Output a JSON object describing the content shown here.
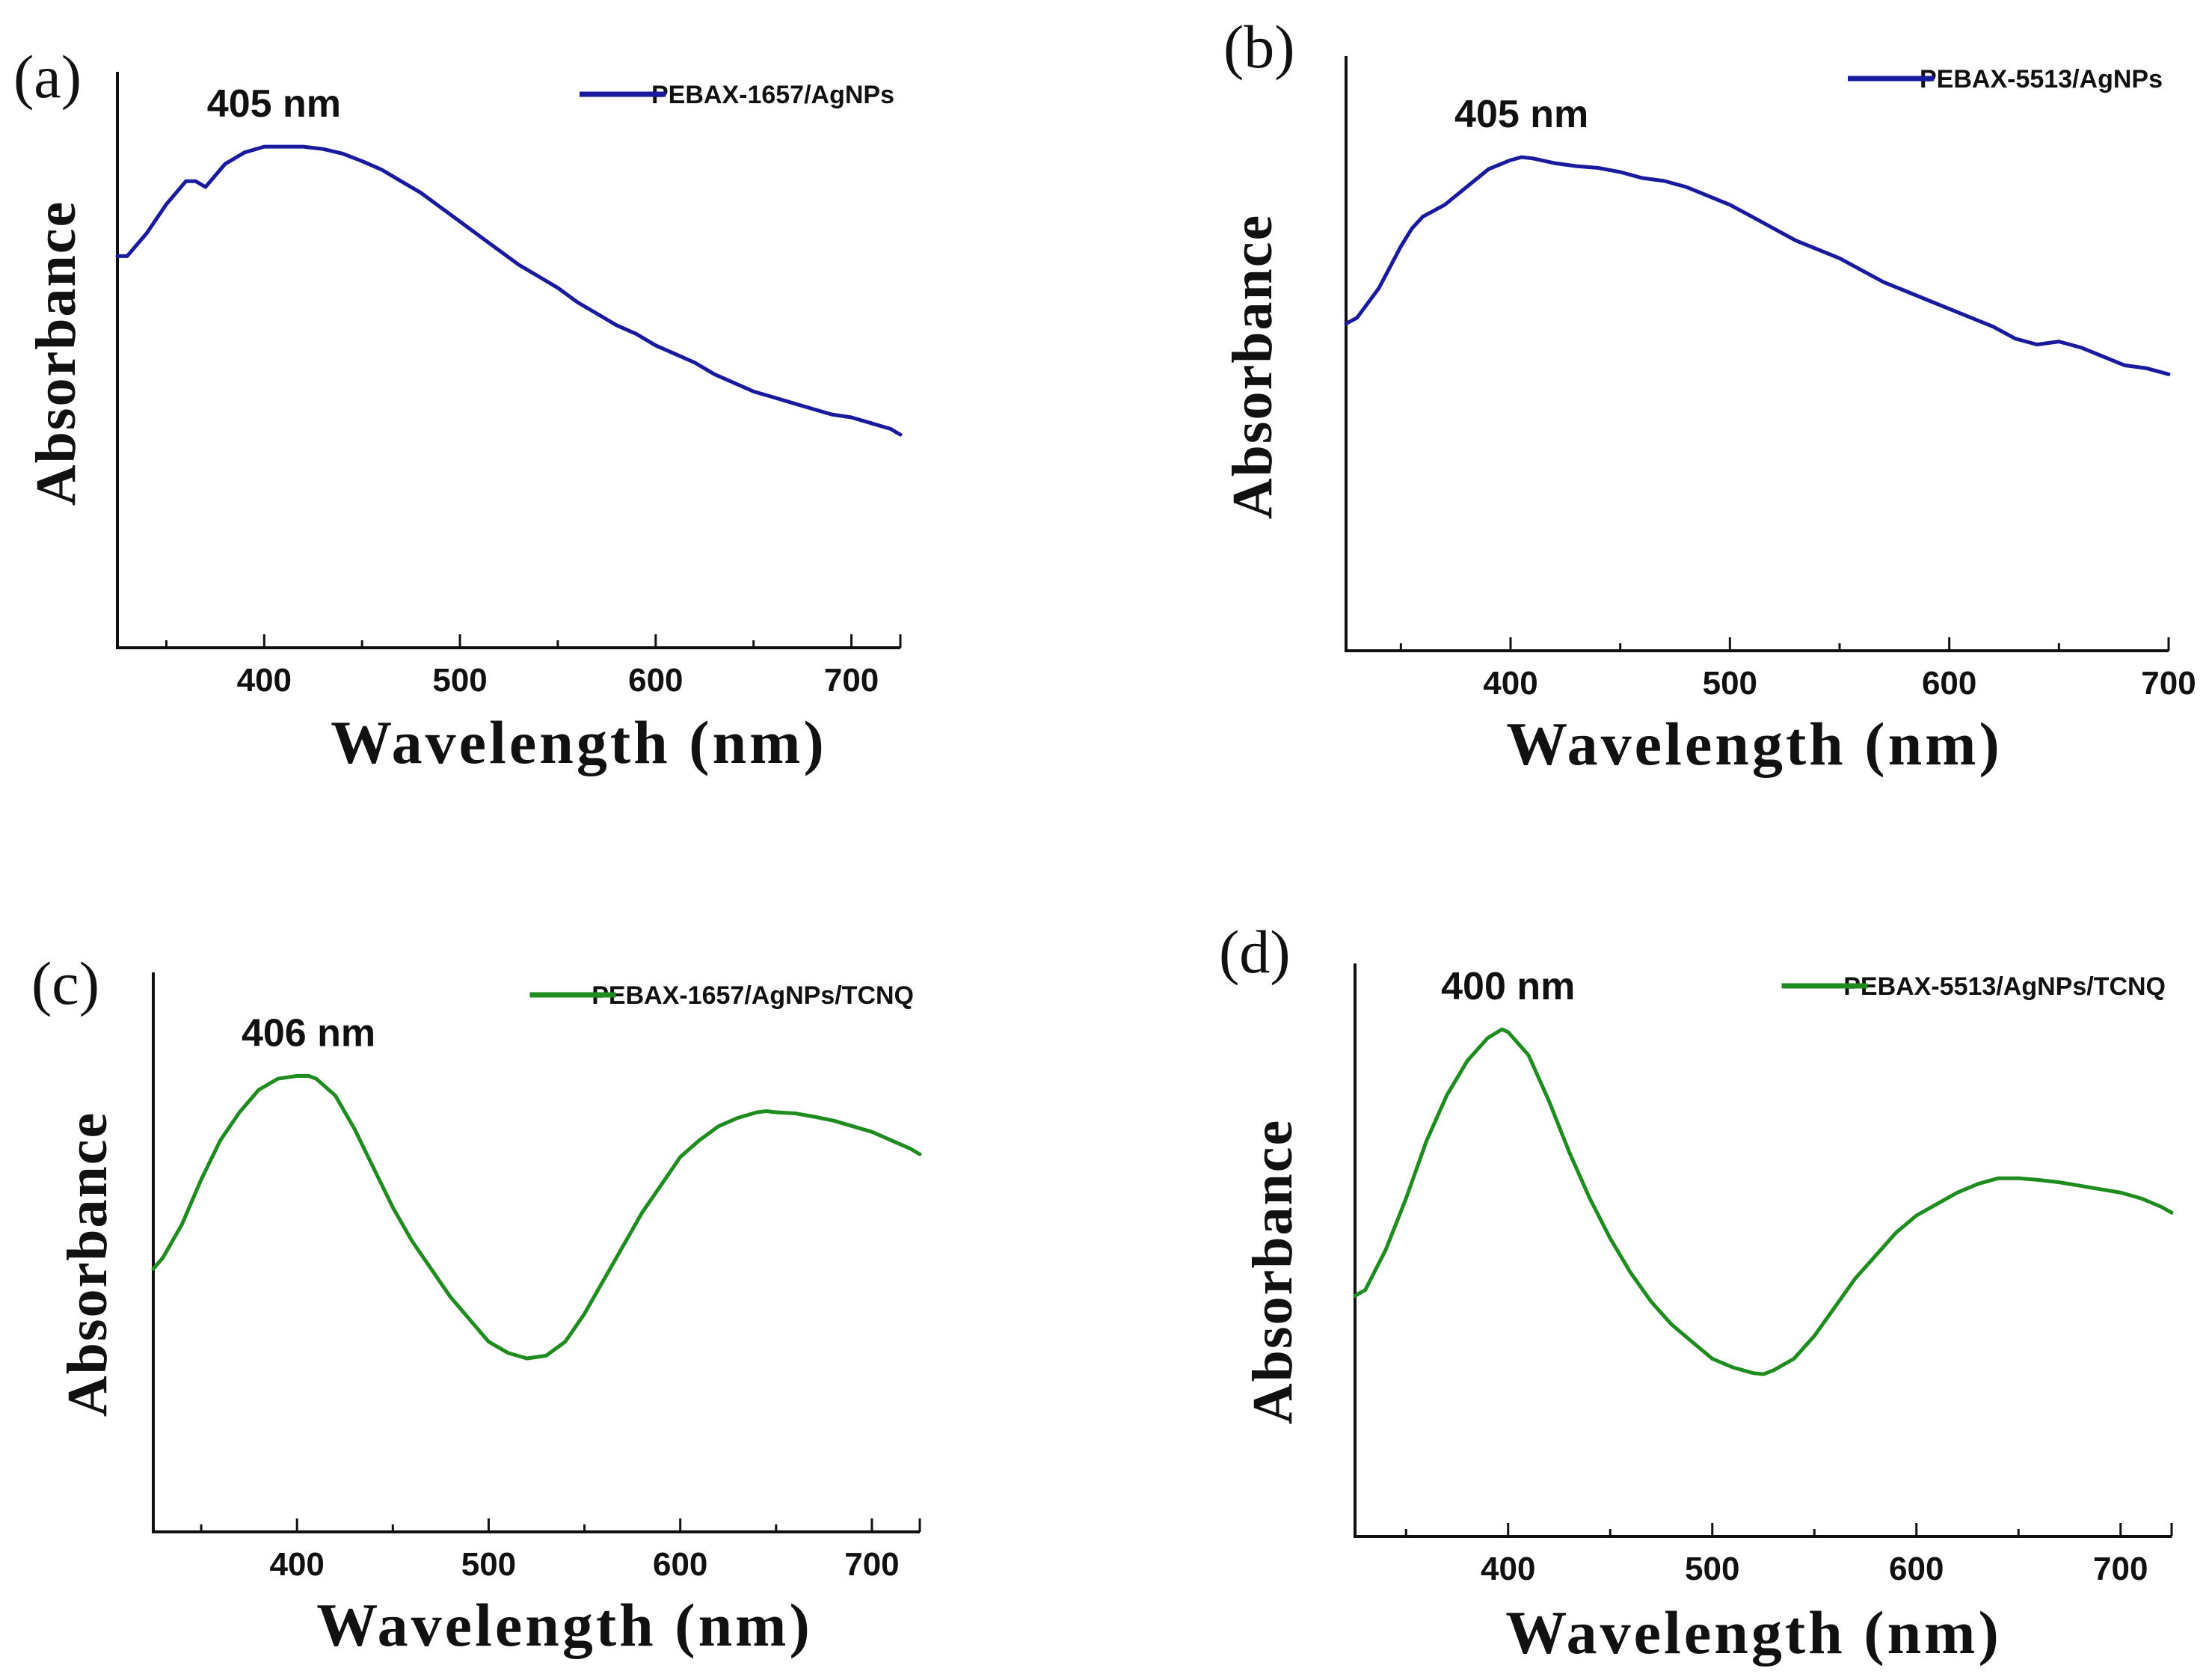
{
  "chart_data": [
    {
      "type": "line",
      "panel_label": "(a)",
      "xlabel": "Wavelength (nm)",
      "ylabel": "Absorbance",
      "xlim": [
        325,
        725
      ],
      "ylim": [
        0,
        1
      ],
      "xticks": [
        400,
        500,
        600,
        700
      ],
      "yticks": [],
      "legend_position": "top-right",
      "annotation": {
        "text": "405 nm",
        "x": 405
      },
      "series": [
        {
          "name": "PEBAX-1657/AgNPs",
          "color": "#1a1a9e",
          "x": [
            325,
            330,
            340,
            350,
            355,
            360,
            365,
            370,
            375,
            380,
            390,
            400,
            405,
            410,
            420,
            430,
            440,
            450,
            460,
            470,
            480,
            490,
            500,
            510,
            520,
            530,
            540,
            550,
            560,
            570,
            580,
            590,
            600,
            610,
            620,
            630,
            640,
            650,
            660,
            670,
            680,
            690,
            700,
            710,
            720,
            725
          ],
          "y": [
            0.68,
            0.68,
            0.72,
            0.77,
            0.79,
            0.81,
            0.81,
            0.8,
            0.82,
            0.84,
            0.86,
            0.87,
            0.87,
            0.87,
            0.87,
            0.866,
            0.858,
            0.845,
            0.83,
            0.81,
            0.79,
            0.765,
            0.74,
            0.715,
            0.69,
            0.665,
            0.645,
            0.625,
            0.6,
            0.58,
            0.56,
            0.545,
            0.525,
            0.51,
            0.495,
            0.475,
            0.46,
            0.445,
            0.435,
            0.425,
            0.415,
            0.405,
            0.4,
            0.39,
            0.38,
            0.37
          ]
        }
      ]
    },
    {
      "type": "line",
      "panel_label": "(b)",
      "xlabel": "Wavelength (nm)",
      "ylabel": "Absorbance",
      "xlim": [
        325,
        700
      ],
      "ylim": [
        0,
        1
      ],
      "xticks": [
        400,
        500,
        600,
        700
      ],
      "yticks": [],
      "legend_position": "top-right",
      "annotation": {
        "text": "405 nm",
        "x": 405
      },
      "series": [
        {
          "name": "PEBAX-5513/AgNPs",
          "color": "#1a1a9e",
          "x": [
            325,
            330,
            340,
            350,
            355,
            360,
            370,
            380,
            390,
            400,
            405,
            410,
            420,
            430,
            440,
            450,
            460,
            470,
            480,
            490,
            500,
            510,
            520,
            530,
            540,
            550,
            560,
            570,
            580,
            590,
            600,
            610,
            620,
            630,
            640,
            650,
            660,
            670,
            680,
            690,
            700
          ],
          "y": [
            0.55,
            0.56,
            0.61,
            0.68,
            0.71,
            0.73,
            0.75,
            0.78,
            0.81,
            0.825,
            0.83,
            0.828,
            0.82,
            0.815,
            0.812,
            0.805,
            0.795,
            0.79,
            0.78,
            0.765,
            0.75,
            0.73,
            0.71,
            0.69,
            0.675,
            0.66,
            0.64,
            0.62,
            0.605,
            0.59,
            0.575,
            0.56,
            0.545,
            0.525,
            0.515,
            0.52,
            0.51,
            0.495,
            0.48,
            0.475,
            0.465
          ]
        }
      ]
    },
    {
      "type": "line",
      "panel_label": "(c)",
      "xlabel": "Wavelength (nm)",
      "ylabel": "Absorbance",
      "xlim": [
        325,
        725
      ],
      "ylim": [
        0,
        1
      ],
      "xticks": [
        400,
        500,
        600,
        700
      ],
      "yticks": [],
      "legend_position": "top-right",
      "annotation": {
        "text": "406 nm",
        "x": 406
      },
      "series": [
        {
          "name": "PEBAX-1657/AgNPs/TCNQ",
          "color": "#1e8c1e",
          "x": [
            325,
            330,
            340,
            350,
            360,
            370,
            380,
            390,
            400,
            406,
            410,
            420,
            430,
            440,
            450,
            460,
            470,
            480,
            490,
            500,
            510,
            520,
            530,
            540,
            550,
            560,
            570,
            580,
            590,
            600,
            610,
            620,
            630,
            640,
            645,
            650,
            660,
            670,
            680,
            690,
            700,
            710,
            720,
            725
          ],
          "y": [
            0.47,
            0.49,
            0.55,
            0.63,
            0.7,
            0.75,
            0.79,
            0.81,
            0.815,
            0.815,
            0.81,
            0.78,
            0.72,
            0.65,
            0.58,
            0.52,
            0.47,
            0.42,
            0.38,
            0.34,
            0.32,
            0.31,
            0.315,
            0.34,
            0.39,
            0.45,
            0.51,
            0.57,
            0.62,
            0.67,
            0.7,
            0.725,
            0.74,
            0.75,
            0.752,
            0.75,
            0.748,
            0.742,
            0.735,
            0.725,
            0.715,
            0.7,
            0.685,
            0.675
          ]
        }
      ]
    },
    {
      "type": "line",
      "panel_label": "(d)",
      "xlabel": "Wavelength (nm)",
      "ylabel": "Absorbance",
      "xlim": [
        325,
        725
      ],
      "ylim": [
        0,
        1
      ],
      "xticks": [
        400,
        500,
        600,
        700
      ],
      "yticks": [],
      "legend_position": "top-right",
      "annotation": {
        "text": "400 nm",
        "x": 400
      },
      "series": [
        {
          "name": "PEBAX-5513/AgNPs/TCNQ",
          "color": "#1e8c1e",
          "x": [
            325,
            330,
            340,
            350,
            360,
            370,
            380,
            390,
            397,
            400,
            410,
            420,
            430,
            440,
            450,
            460,
            470,
            480,
            490,
            500,
            510,
            520,
            525,
            530,
            540,
            550,
            560,
            570,
            580,
            590,
            600,
            610,
            620,
            630,
            640,
            650,
            660,
            670,
            680,
            690,
            700,
            710,
            720,
            725
          ],
          "y": [
            0.42,
            0.43,
            0.5,
            0.59,
            0.69,
            0.77,
            0.83,
            0.87,
            0.885,
            0.88,
            0.84,
            0.76,
            0.67,
            0.59,
            0.52,
            0.46,
            0.41,
            0.37,
            0.34,
            0.31,
            0.295,
            0.285,
            0.283,
            0.29,
            0.31,
            0.35,
            0.4,
            0.45,
            0.49,
            0.53,
            0.56,
            0.58,
            0.6,
            0.615,
            0.625,
            0.625,
            0.622,
            0.618,
            0.612,
            0.606,
            0.6,
            0.59,
            0.575,
            0.565
          ]
        }
      ]
    }
  ]
}
